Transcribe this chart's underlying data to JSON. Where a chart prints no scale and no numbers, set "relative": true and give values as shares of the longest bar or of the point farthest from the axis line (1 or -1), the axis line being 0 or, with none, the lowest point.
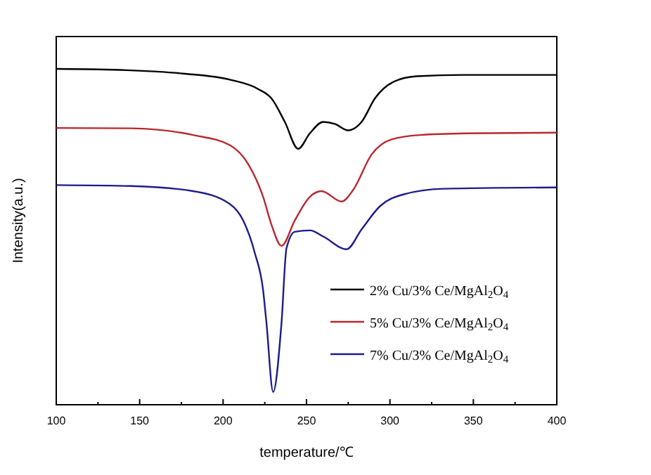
{
  "chart_data": {
    "type": "line",
    "relative": true,
    "xlabel": "temperature/℃",
    "ylabel": "Intensity(a.u.)",
    "xlim": [
      100,
      400
    ],
    "xticks": [
      100,
      {
        "value": 125,
        "label": null
      },
      150,
      {
        "value": 175,
        "label": null
      },
      200,
      {
        "value": 225,
        "label": null
      },
      250,
      {
        "value": 275,
        "label": null
      },
      300,
      {
        "value": 325,
        "label": null
      },
      350,
      {
        "value": 375,
        "label": null
      },
      400
    ],
    "legend": "bottom right",
    "grid": false,
    "marker": "none",
    "line_style": "solid",
    "series": [
      {
        "name": "2% Cu/3% Ce/MgAl$_{2}$O$_{4}$",
        "color": "#000000",
        "x": [
          100,
          142,
          176,
          204,
          221,
          229,
          237,
          245,
          252,
          260,
          267,
          275,
          283,
          291,
          302,
          316,
          344,
          400
        ],
        "values": [
          1.0,
          0.996,
          0.986,
          0.968,
          0.94,
          0.912,
          0.842,
          0.762,
          0.808,
          0.842,
          0.836,
          0.817,
          0.842,
          0.912,
          0.961,
          0.978,
          0.982,
          0.982
        ]
      },
      {
        "name": "5% Cu/3% Ce/MgAl$_{2}$O$_{4}$",
        "color": "#b8282d",
        "x": [
          100,
          145,
          182,
          204,
          215,
          224,
          229,
          235,
          243,
          252,
          259,
          271,
          278,
          289,
          301,
          318,
          346,
          400
        ],
        "values": [
          0.824,
          0.823,
          0.803,
          0.773,
          0.717,
          0.619,
          0.536,
          0.473,
          0.549,
          0.619,
          0.636,
          0.605,
          0.64,
          0.745,
          0.79,
          0.803,
          0.808,
          0.81
        ]
      },
      {
        "name": "7% Cu/3% Ce/MgAl$_{2}$O$_{4}$",
        "color": "#1c1c8a",
        "x": [
          100,
          145,
          182,
          204,
          212,
          219,
          224,
          226,
          230,
          235,
          238,
          243,
          252,
          260,
          274,
          283,
          294,
          308,
          332,
          400
        ],
        "values": [
          0.654,
          0.651,
          0.636,
          0.598,
          0.549,
          0.452,
          0.34,
          0.243,
          0.038,
          0.243,
          0.466,
          0.515,
          0.519,
          0.501,
          0.463,
          0.522,
          0.591,
          0.626,
          0.643,
          0.647
        ]
      }
    ]
  }
}
